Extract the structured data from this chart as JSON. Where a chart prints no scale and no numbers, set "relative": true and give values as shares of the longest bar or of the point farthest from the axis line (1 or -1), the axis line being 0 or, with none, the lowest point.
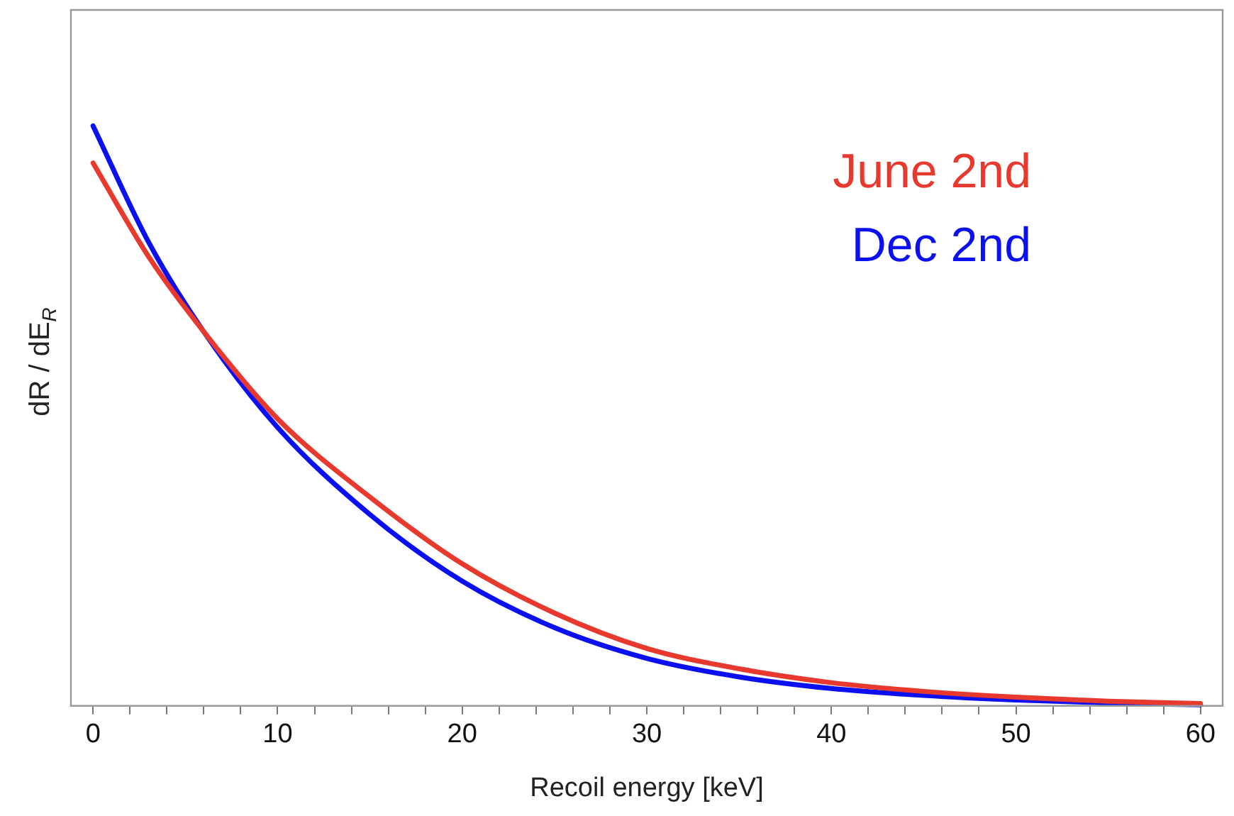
{
  "chart_data": {
    "type": "line",
    "xlabel": "Recoil energy [keV]",
    "ylabel": "dR / dE$_{R}$",
    "relative": true,
    "legend": "top right",
    "marker": "none",
    "line_style": "solid",
    "x": [
      0,
      3,
      6,
      10,
      15,
      20,
      25,
      30,
      35,
      40,
      45,
      50,
      55,
      60
    ],
    "xlim": [
      -1.2,
      61.2
    ],
    "xticks": [
      0,
      {
        "value": 2,
        "label": null
      },
      {
        "value": 4,
        "label": null
      },
      {
        "value": 6,
        "label": null
      },
      {
        "value": 8,
        "label": null
      },
      10,
      {
        "value": 12,
        "label": null
      },
      {
        "value": 14,
        "label": null
      },
      {
        "value": 16,
        "label": null
      },
      {
        "value": 18,
        "label": null
      },
      20,
      {
        "value": 22,
        "label": null
      },
      {
        "value": 24,
        "label": null
      },
      {
        "value": 26,
        "label": null
      },
      {
        "value": 28,
        "label": null
      },
      30,
      {
        "value": 32,
        "label": null
      },
      {
        "value": 34,
        "label": null
      },
      {
        "value": 36,
        "label": null
      },
      {
        "value": 38,
        "label": null
      },
      40,
      {
        "value": 42,
        "label": null
      },
      {
        "value": 44,
        "label": null
      },
      {
        "value": 46,
        "label": null
      },
      {
        "value": 48,
        "label": null
      },
      50,
      {
        "value": 52,
        "label": null
      },
      {
        "value": 54,
        "label": null
      },
      {
        "value": 56,
        "label": null
      },
      {
        "value": 58,
        "label": null
      },
      60
    ],
    "series": [
      {
        "name": "June 2nd",
        "color": "#e8392f",
        "values": [
          0.936,
          0.775,
          0.645,
          0.495,
          0.36,
          0.245,
          0.16,
          0.099,
          0.064,
          0.04,
          0.025,
          0.015,
          0.008,
          0.004
        ]
      },
      {
        "name": "Dec 2nd",
        "color": "#0a10f0",
        "values": [
          1,
          0.8,
          0.645,
          0.48,
          0.33,
          0.215,
          0.135,
          0.082,
          0.05,
          0.03,
          0.018,
          0.01,
          0.005,
          0.002
        ]
      }
    ]
  }
}
